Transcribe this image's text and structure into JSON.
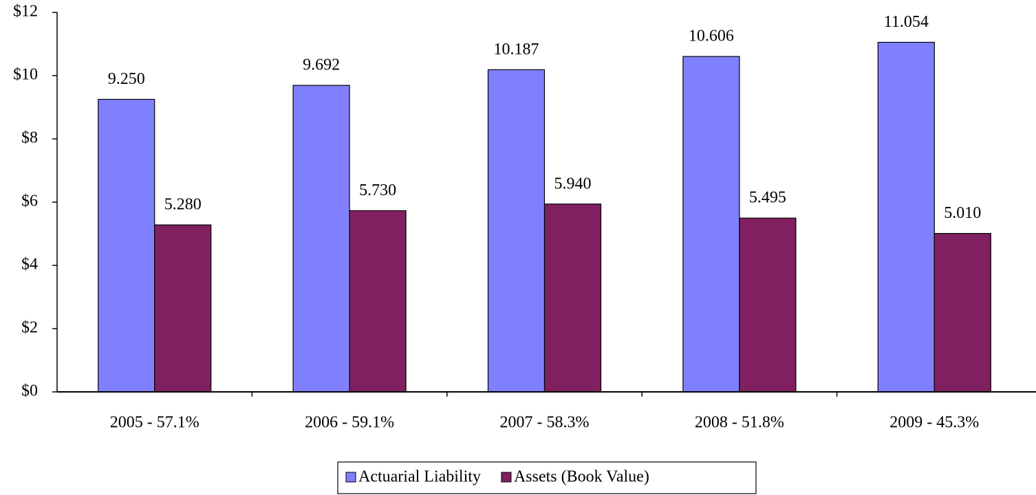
{
  "chart_data": {
    "type": "bar",
    "categories": [
      "2005 - 57.1%",
      "2006 - 59.1%",
      "2007 - 58.3%",
      "2008 - 51.8%",
      "2009 - 45.3%"
    ],
    "series": [
      {
        "name": "Actuarial Liability",
        "color": "#8080ff",
        "values": [
          9.25,
          9.692,
          10.187,
          10.606,
          11.054
        ],
        "value_labels": [
          "9.250",
          "9.692",
          "10.187",
          "10.606",
          "11.054"
        ]
      },
      {
        "name": "Assets (Book Value)",
        "color": "#802060",
        "values": [
          5.28,
          5.73,
          5.94,
          5.495,
          5.01
        ],
        "value_labels": [
          "5.280",
          "5.730",
          "5.940",
          "5.495",
          "5.010"
        ]
      }
    ],
    "ylim": [
      0,
      12
    ],
    "yticks": [
      {
        "value": 0,
        "label": "$0"
      },
      {
        "value": 2,
        "label": "$2"
      },
      {
        "value": 4,
        "label": "$4"
      },
      {
        "value": 6,
        "label": "$6"
      },
      {
        "value": 8,
        "label": "$8"
      },
      {
        "value": 10,
        "label": "$10"
      },
      {
        "value": 12,
        "label": "$12"
      }
    ],
    "legend": "bottom"
  }
}
